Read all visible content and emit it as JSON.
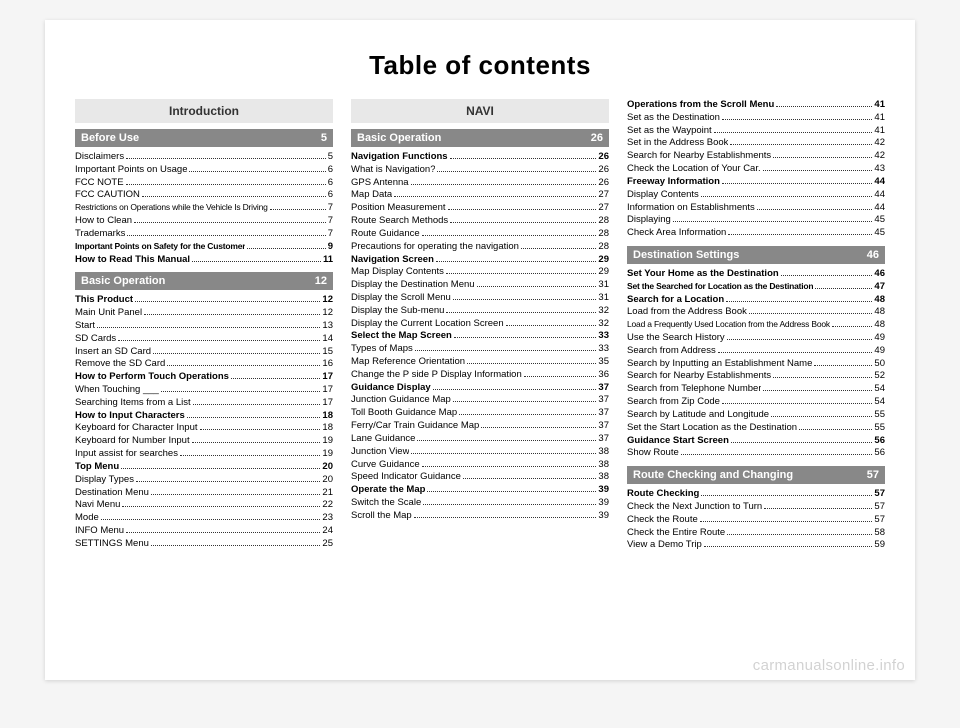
{
  "title": "Table of contents",
  "watermark": "carmanualsonline.info",
  "col1": {
    "intro": "Introduction",
    "s1": {
      "title": "Before Use",
      "page": "5"
    },
    "e1": [
      {
        "l": "Disclaimers",
        "p": "5"
      },
      {
        "l": "Important Points on Usage",
        "p": "6"
      },
      {
        "l": "FCC NOTE",
        "p": "6"
      },
      {
        "l": "FCC CAUTION",
        "p": "6"
      },
      {
        "l": "Restrictions on Operations while the Vehicle Is Driving",
        "p": "7",
        "cond": true
      },
      {
        "l": "How to Clean",
        "p": "7"
      },
      {
        "l": "Trademarks",
        "p": "7"
      },
      {
        "l": "Important Points on Safety for the Customer",
        "p": "9",
        "bold": true,
        "cond": true
      },
      {
        "l": "How to Read This Manual",
        "p": "11",
        "bold": true
      }
    ],
    "s2": {
      "title": "Basic Operation",
      "page": "12"
    },
    "e2": [
      {
        "l": "This Product",
        "p": "12",
        "bold": true
      },
      {
        "l": "Main Unit Panel",
        "p": "12"
      },
      {
        "l": "Start",
        "p": "13"
      },
      {
        "l": "SD Cards",
        "p": "14"
      },
      {
        "l": "Insert an SD Card",
        "p": "15"
      },
      {
        "l": "Remove the SD Card",
        "p": "16"
      },
      {
        "l": "How to Perform Touch Operations",
        "p": "17",
        "bold": true
      },
      {
        "l": "When Touching ___",
        "p": "17"
      },
      {
        "l": "Searching Items from a List",
        "p": "17"
      },
      {
        "l": "How to Input Characters",
        "p": "18",
        "bold": true
      },
      {
        "l": "Keyboard for Character Input",
        "p": "18"
      },
      {
        "l": "Keyboard for Number Input",
        "p": "19"
      },
      {
        "l": "Input assist for searches",
        "p": "19"
      },
      {
        "l": "Top Menu",
        "p": "20",
        "bold": true
      },
      {
        "l": "Display Types",
        "p": "20"
      },
      {
        "l": "Destination Menu",
        "p": "21"
      },
      {
        "l": "Navi Menu",
        "p": "22"
      },
      {
        "l": "Mode",
        "p": "23"
      },
      {
        "l": "INFO Menu",
        "p": "24"
      },
      {
        "l": "SETTINGS Menu",
        "p": "25"
      }
    ]
  },
  "col2": {
    "intro": "NAVI",
    "s1": {
      "title": "Basic Operation",
      "page": "26"
    },
    "e1": [
      {
        "l": "Navigation Functions",
        "p": "26",
        "bold": true
      },
      {
        "l": "What is Navigation?",
        "p": "26"
      },
      {
        "l": "GPS Antenna",
        "p": "26"
      },
      {
        "l": "Map Data",
        "p": "27"
      },
      {
        "l": "Position Measurement",
        "p": "27"
      },
      {
        "l": "Route Search Methods",
        "p": "28"
      },
      {
        "l": "Route Guidance",
        "p": "28"
      },
      {
        "l": "Precautions for operating the navigation",
        "p": "28"
      },
      {
        "l": "Navigation Screen",
        "p": "29",
        "bold": true
      },
      {
        "l": "Map Display Contents",
        "p": "29"
      },
      {
        "l": "Display the Destination Menu",
        "p": "31"
      },
      {
        "l": "Display the Scroll Menu",
        "p": "31"
      },
      {
        "l": "Display the Sub-menu",
        "p": "32"
      },
      {
        "l": "Display the Current Location Screen",
        "p": "32"
      },
      {
        "l": "Select the Map Screen",
        "p": "33",
        "bold": true
      },
      {
        "l": "Types of Maps",
        "p": "33"
      },
      {
        "l": "Map Reference Orientation",
        "p": "35"
      },
      {
        "l": "Change the P side P Display Information",
        "p": "36"
      },
      {
        "l": "Guidance Display",
        "p": "37",
        "bold": true
      },
      {
        "l": "Junction Guidance Map",
        "p": "37"
      },
      {
        "l": "Toll Booth Guidance Map",
        "p": "37"
      },
      {
        "l": "Ferry/Car Train Guidance Map",
        "p": "37"
      },
      {
        "l": "Lane Guidance",
        "p": "37"
      },
      {
        "l": "Junction View",
        "p": "38"
      },
      {
        "l": "Curve Guidance",
        "p": "38"
      },
      {
        "l": "Speed Indicator Guidance",
        "p": "38"
      },
      {
        "l": "Operate the Map",
        "p": "39",
        "bold": true
      },
      {
        "l": "Switch the Scale",
        "p": "39"
      },
      {
        "l": "Scroll the Map",
        "p": "39"
      }
    ]
  },
  "col3": {
    "e0": [
      {
        "l": "Operations from the Scroll Menu",
        "p": "41",
        "bold": true
      },
      {
        "l": "Set as the Destination",
        "p": "41"
      },
      {
        "l": "Set as the Waypoint",
        "p": "41"
      },
      {
        "l": "Set in the Address Book",
        "p": "42"
      },
      {
        "l": "Search for Nearby Establishments",
        "p": "42"
      },
      {
        "l": "Check the Location of Your Car.",
        "p": "43"
      },
      {
        "l": "Freeway Information",
        "p": "44",
        "bold": true
      },
      {
        "l": "Display Contents",
        "p": "44"
      },
      {
        "l": "Information on Establishments",
        "p": "44"
      },
      {
        "l": "Displaying",
        "p": "45"
      },
      {
        "l": "Check Area Information",
        "p": "45"
      }
    ],
    "s1": {
      "title": "Destination Settings",
      "page": "46"
    },
    "e1": [
      {
        "l": "Set Your Home as the Destination",
        "p": "46",
        "bold": true
      },
      {
        "l": "Set the Searched for Location as the Destination",
        "p": "47",
        "bold": true,
        "cond": true
      },
      {
        "l": "Search for a Location",
        "p": "48",
        "bold": true
      },
      {
        "l": "Load from the Address Book",
        "p": "48"
      },
      {
        "l": "Load a Frequently Used Location from the Address Book",
        "p": "48",
        "cond": true
      },
      {
        "l": "Use the Search History",
        "p": "49"
      },
      {
        "l": "Search from Address",
        "p": "49"
      },
      {
        "l": "Search by Inputting an Establishment Name",
        "p": "50"
      },
      {
        "l": "Search for Nearby Establishments",
        "p": "52"
      },
      {
        "l": "Search from Telephone Number",
        "p": "54"
      },
      {
        "l": "Search from Zip Code",
        "p": "54"
      },
      {
        "l": "Search by Latitude and Longitude",
        "p": "55"
      },
      {
        "l": "Set the Start Location as the Destination",
        "p": "55"
      },
      {
        "l": "Guidance Start Screen",
        "p": "56",
        "bold": true
      },
      {
        "l": "Show Route",
        "p": "56"
      }
    ],
    "s2": {
      "title": "Route Checking and Changing",
      "page": "57"
    },
    "e2": [
      {
        "l": "Route Checking",
        "p": "57",
        "bold": true
      },
      {
        "l": "Check the Next Junction to Turn",
        "p": "57"
      },
      {
        "l": "Check the Route",
        "p": "57"
      },
      {
        "l": "Check the Entire Route",
        "p": "58"
      },
      {
        "l": "View a Demo Trip",
        "p": "59"
      }
    ]
  }
}
